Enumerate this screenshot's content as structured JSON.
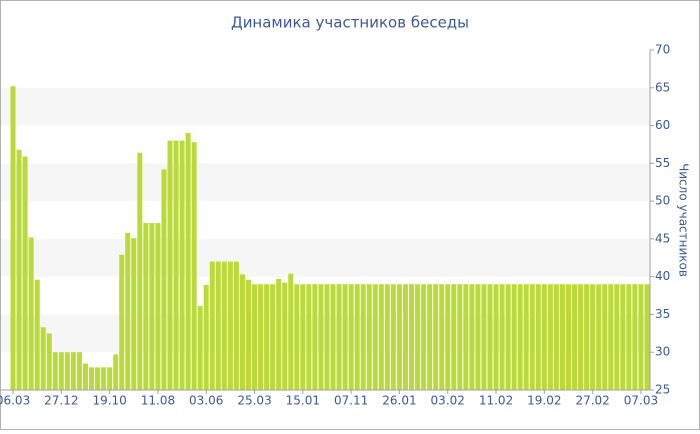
{
  "chart_data": {
    "type": "bar",
    "title": "Динамика участников беседы",
    "y_label": "Число участников",
    "categories": [
      "06.03",
      null,
      null,
      null,
      null,
      null,
      null,
      null,
      "27.12",
      null,
      null,
      null,
      null,
      null,
      null,
      null,
      "19.10",
      null,
      null,
      null,
      null,
      null,
      null,
      null,
      "11.08",
      null,
      null,
      null,
      null,
      null,
      null,
      null,
      "03.06",
      null,
      null,
      null,
      null,
      null,
      null,
      null,
      "25.03",
      null,
      null,
      null,
      null,
      null,
      null,
      null,
      "15.01",
      null,
      null,
      null,
      null,
      null,
      null,
      null,
      "07.11",
      null,
      null,
      null,
      null,
      null,
      null,
      null,
      "26.01",
      null,
      null,
      null,
      null,
      null,
      null,
      null,
      "03.02",
      null,
      null,
      null,
      null,
      null,
      null,
      null,
      "11.02",
      null,
      null,
      null,
      null,
      null,
      null,
      null,
      "19.02",
      null,
      null,
      null,
      null,
      null,
      null,
      null,
      "27.02",
      null,
      null,
      null,
      null,
      null,
      null,
      null,
      "07.03",
      null
    ],
    "values": [
      65.2,
      56.8,
      55.9,
      45.2,
      39.6,
      33.3,
      32.5,
      30,
      30,
      30,
      30,
      30,
      28.5,
      28,
      28,
      28,
      28,
      29.7,
      42.9,
      45.8,
      45.1,
      56.4,
      47.1,
      47.1,
      47.1,
      54.2,
      58,
      58,
      58,
      59,
      57.8,
      36.1,
      38.9,
      42,
      42,
      42,
      42,
      42,
      40.3,
      39.6,
      39,
      39,
      39,
      39,
      39.7,
      39.2,
      40.4,
      39,
      39,
      39,
      39,
      39,
      39,
      39,
      39,
      39,
      39,
      39,
      39,
      39,
      39,
      39,
      39,
      39,
      39,
      39,
      39,
      39,
      39,
      39,
      39,
      39,
      39,
      39,
      39,
      39,
      39,
      39,
      39,
      39,
      39,
      39,
      39,
      39,
      39,
      39,
      39,
      39,
      39,
      39,
      39,
      39,
      39,
      39,
      39,
      39,
      39,
      39,
      39,
      39,
      39,
      39,
      39,
      39,
      39,
      39
    ],
    "color": "#bada3a",
    "ylim": [
      25,
      70
    ],
    "yticks": [
      25,
      30,
      35,
      40,
      45,
      50,
      55,
      60,
      65,
      70
    ],
    "grid": true
  }
}
